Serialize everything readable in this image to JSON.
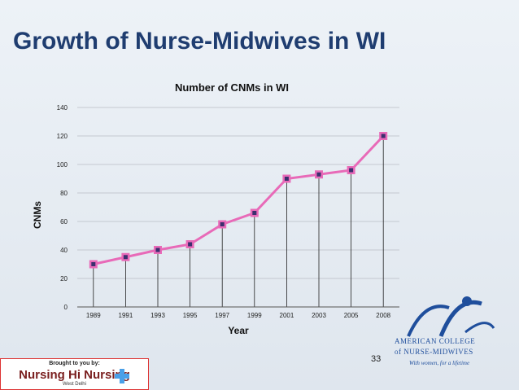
{
  "slide": {
    "title": "Growth of Nurse-Midwives in WI",
    "page_number": "33"
  },
  "chart_data": {
    "type": "line",
    "title": "Number of CNMs in WI",
    "xlabel": "Year",
    "ylabel": "CNMs",
    "categories": [
      "1989",
      "1991",
      "1993",
      "1995",
      "1997",
      "1999",
      "2001",
      "2003",
      "2005",
      "2008"
    ],
    "series": [
      {
        "values": [
          30,
          35,
          40,
          44,
          58,
          66,
          90,
          93,
          96,
          120
        ],
        "color": "#e86ab8",
        "marker_color": "#3b2f6e"
      }
    ],
    "ylim": [
      0,
      140
    ],
    "yticks": [
      0,
      20,
      40,
      60,
      80,
      100,
      120,
      140
    ],
    "grid": true,
    "drop_lines": true
  },
  "footer_badge": {
    "top": "Brought to you by:",
    "main": "Nursing Hi Nursing",
    "sub": "West Delhi"
  },
  "logo": {
    "line1": "AMERICAN COLLEGE",
    "line2": "of NURSE-MIDWIVES",
    "tagline": "With women, for a lifetime"
  }
}
